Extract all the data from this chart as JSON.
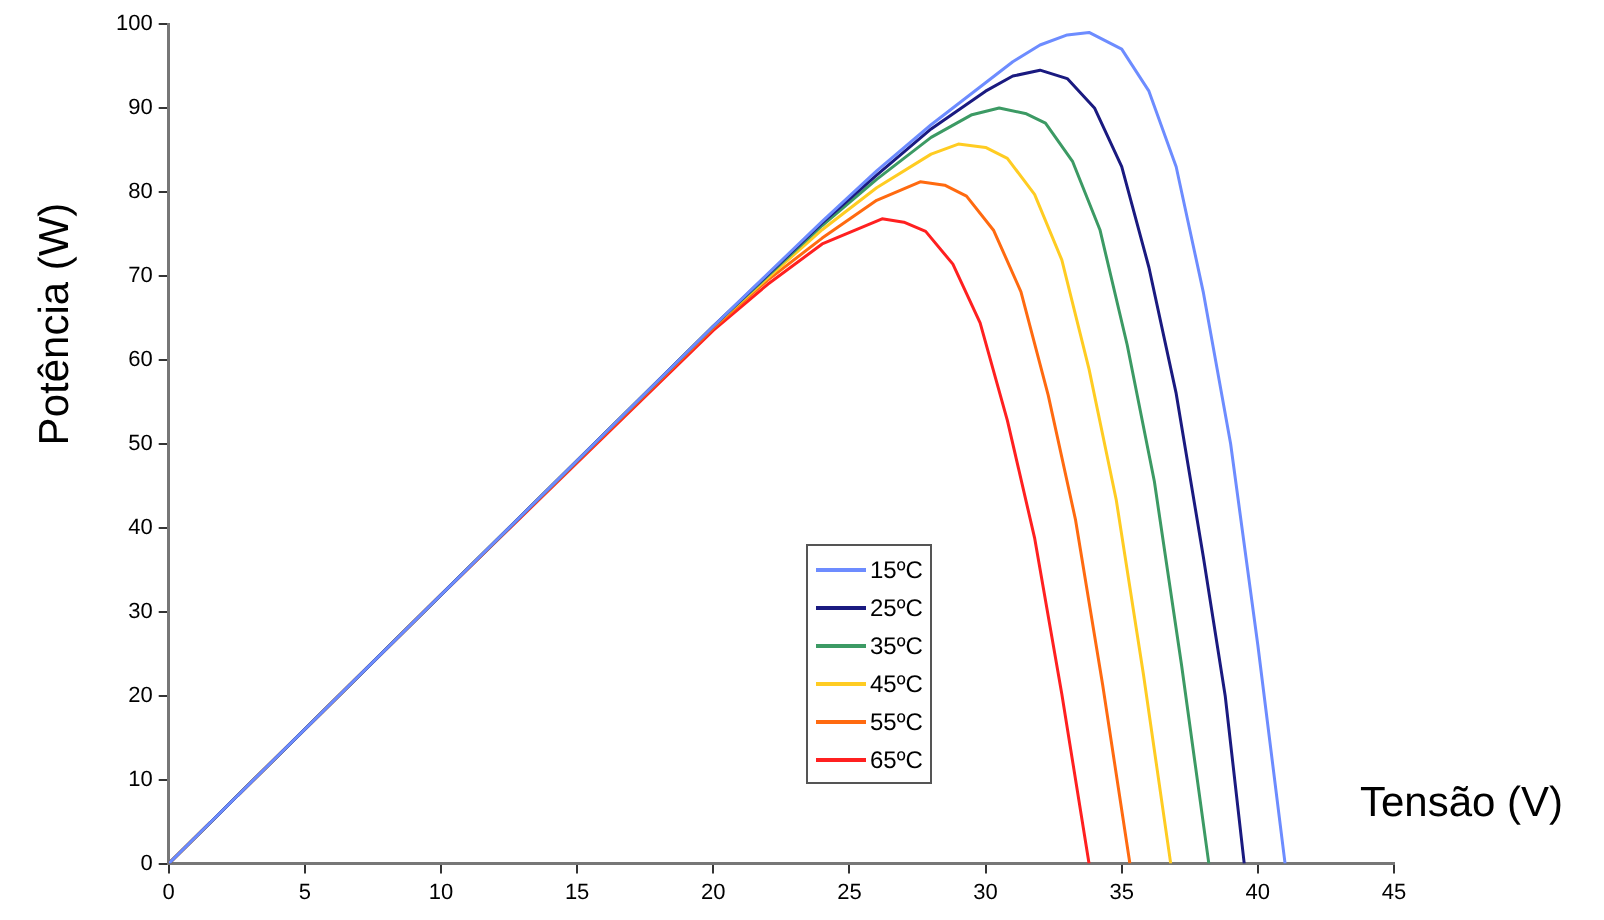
{
  "chart_data": {
    "type": "line",
    "xlabel": "Tensão (V)",
    "ylabel": "Potência (W)",
    "xlim": [
      0,
      45
    ],
    "xticks": [
      0,
      5,
      10,
      15,
      20,
      25,
      30,
      35,
      40,
      45
    ],
    "ylim": [
      0,
      100
    ],
    "yticks": [
      0,
      10,
      20,
      30,
      40,
      50,
      60,
      70,
      80,
      90,
      100
    ],
    "grid": false,
    "legend": "bottom",
    "marker": "none",
    "line_style": "solid",
    "series": [
      {
        "name": "15ºC",
        "color": "#6d8cff",
        "x": [
          0,
          10,
          20,
          24,
          26,
          28,
          30,
          31,
          32,
          33,
          33.8,
          35,
          36,
          37,
          38,
          39,
          40,
          41
        ],
        "values": [
          0,
          32,
          64,
          76.5,
          82.5,
          88,
          93,
          95.5,
          97.5,
          98.7,
          99,
          97,
          92,
          83,
          68,
          50,
          26,
          0
        ]
      },
      {
        "name": "25ºC",
        "color": "#1a1a80",
        "x": [
          0,
          10,
          20,
          24,
          26,
          28,
          30,
          31,
          32,
          33,
          34,
          35,
          36,
          37,
          38,
          38.8,
          39.5
        ],
        "values": [
          0,
          32,
          64,
          76.3,
          82,
          87.5,
          92,
          93.8,
          94.5,
          93.5,
          90,
          83,
          71,
          56,
          36.5,
          20,
          0
        ]
      },
      {
        "name": "35ºC",
        "color": "#3c9a64",
        "x": [
          0,
          10,
          20,
          24,
          26,
          28,
          29.5,
          30.5,
          31.5,
          32.2,
          33.2,
          34.2,
          35.2,
          36.2,
          37.2,
          38.2
        ],
        "values": [
          0,
          32,
          64,
          76,
          81.5,
          86.5,
          89.2,
          90,
          89.3,
          88.2,
          83.6,
          75.5,
          61.8,
          45.5,
          23.6,
          0
        ]
      },
      {
        "name": "45ºC",
        "color": "#ffcc22",
        "x": [
          0,
          10,
          20,
          24,
          26,
          28,
          29,
          30,
          30.8,
          31.8,
          32.8,
          33.8,
          34.8,
          35.8,
          36.8
        ],
        "values": [
          0,
          32,
          64,
          75.5,
          80.5,
          84.5,
          85.7,
          85.3,
          84,
          79.7,
          71.9,
          58.9,
          43.3,
          22.5,
          0
        ]
      },
      {
        "name": "55ºC",
        "color": "#ff6a10",
        "x": [
          0,
          10,
          20,
          22,
          24,
          26,
          27.6,
          28.5,
          29.3,
          30.3,
          31.3,
          32.3,
          33.3,
          34.3,
          35.3
        ],
        "values": [
          0,
          32,
          63.8,
          69.5,
          74.5,
          79,
          81.2,
          80.8,
          79.5,
          75.4,
          68.1,
          55.8,
          41,
          21.3,
          0
        ]
      },
      {
        "name": "65ºC",
        "color": "#ff2020",
        "x": [
          0,
          10,
          20,
          22,
          24,
          26.2,
          27,
          27.8,
          28.8,
          29.8,
          30.8,
          31.8,
          32.8,
          33.8
        ],
        "values": [
          0,
          32,
          63.5,
          69,
          73.8,
          76.8,
          76.4,
          75.3,
          71.4,
          64.4,
          52.8,
          38.8,
          20.2,
          0
        ]
      }
    ]
  }
}
